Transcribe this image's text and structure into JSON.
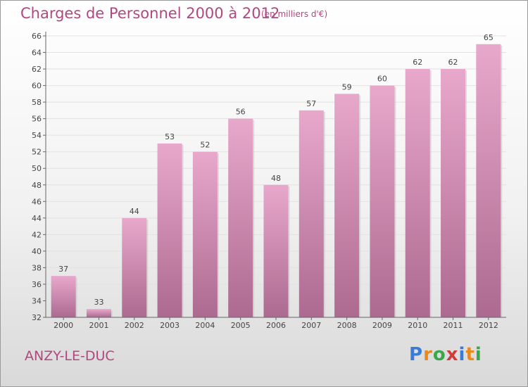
{
  "header": {
    "title": "Charges de Personnel 2000 à 2012",
    "subtitle": "(en milliers d'€)"
  },
  "footer": {
    "place": "ANZY-LE-DUC",
    "logo_text": "Proxiti"
  },
  "chart_data": {
    "type": "bar",
    "title": "Charges de Personnel 2000 à 2012",
    "subtitle": "(en milliers d'€)",
    "categories": [
      "2000",
      "2001",
      "2002",
      "2003",
      "2004",
      "2005",
      "2006",
      "2007",
      "2008",
      "2009",
      "2010",
      "2011",
      "2012"
    ],
    "values": [
      37,
      33,
      44,
      53,
      52,
      56,
      48,
      57,
      59,
      60,
      62,
      62,
      65
    ],
    "ylim": [
      32,
      66
    ],
    "yticks": [
      32,
      34,
      36,
      38,
      40,
      42,
      44,
      46,
      48,
      50,
      52,
      54,
      56,
      58,
      60,
      62,
      64,
      66
    ],
    "grid": true,
    "bar_color": "#c8739f",
    "title_color": "#b2477f"
  }
}
